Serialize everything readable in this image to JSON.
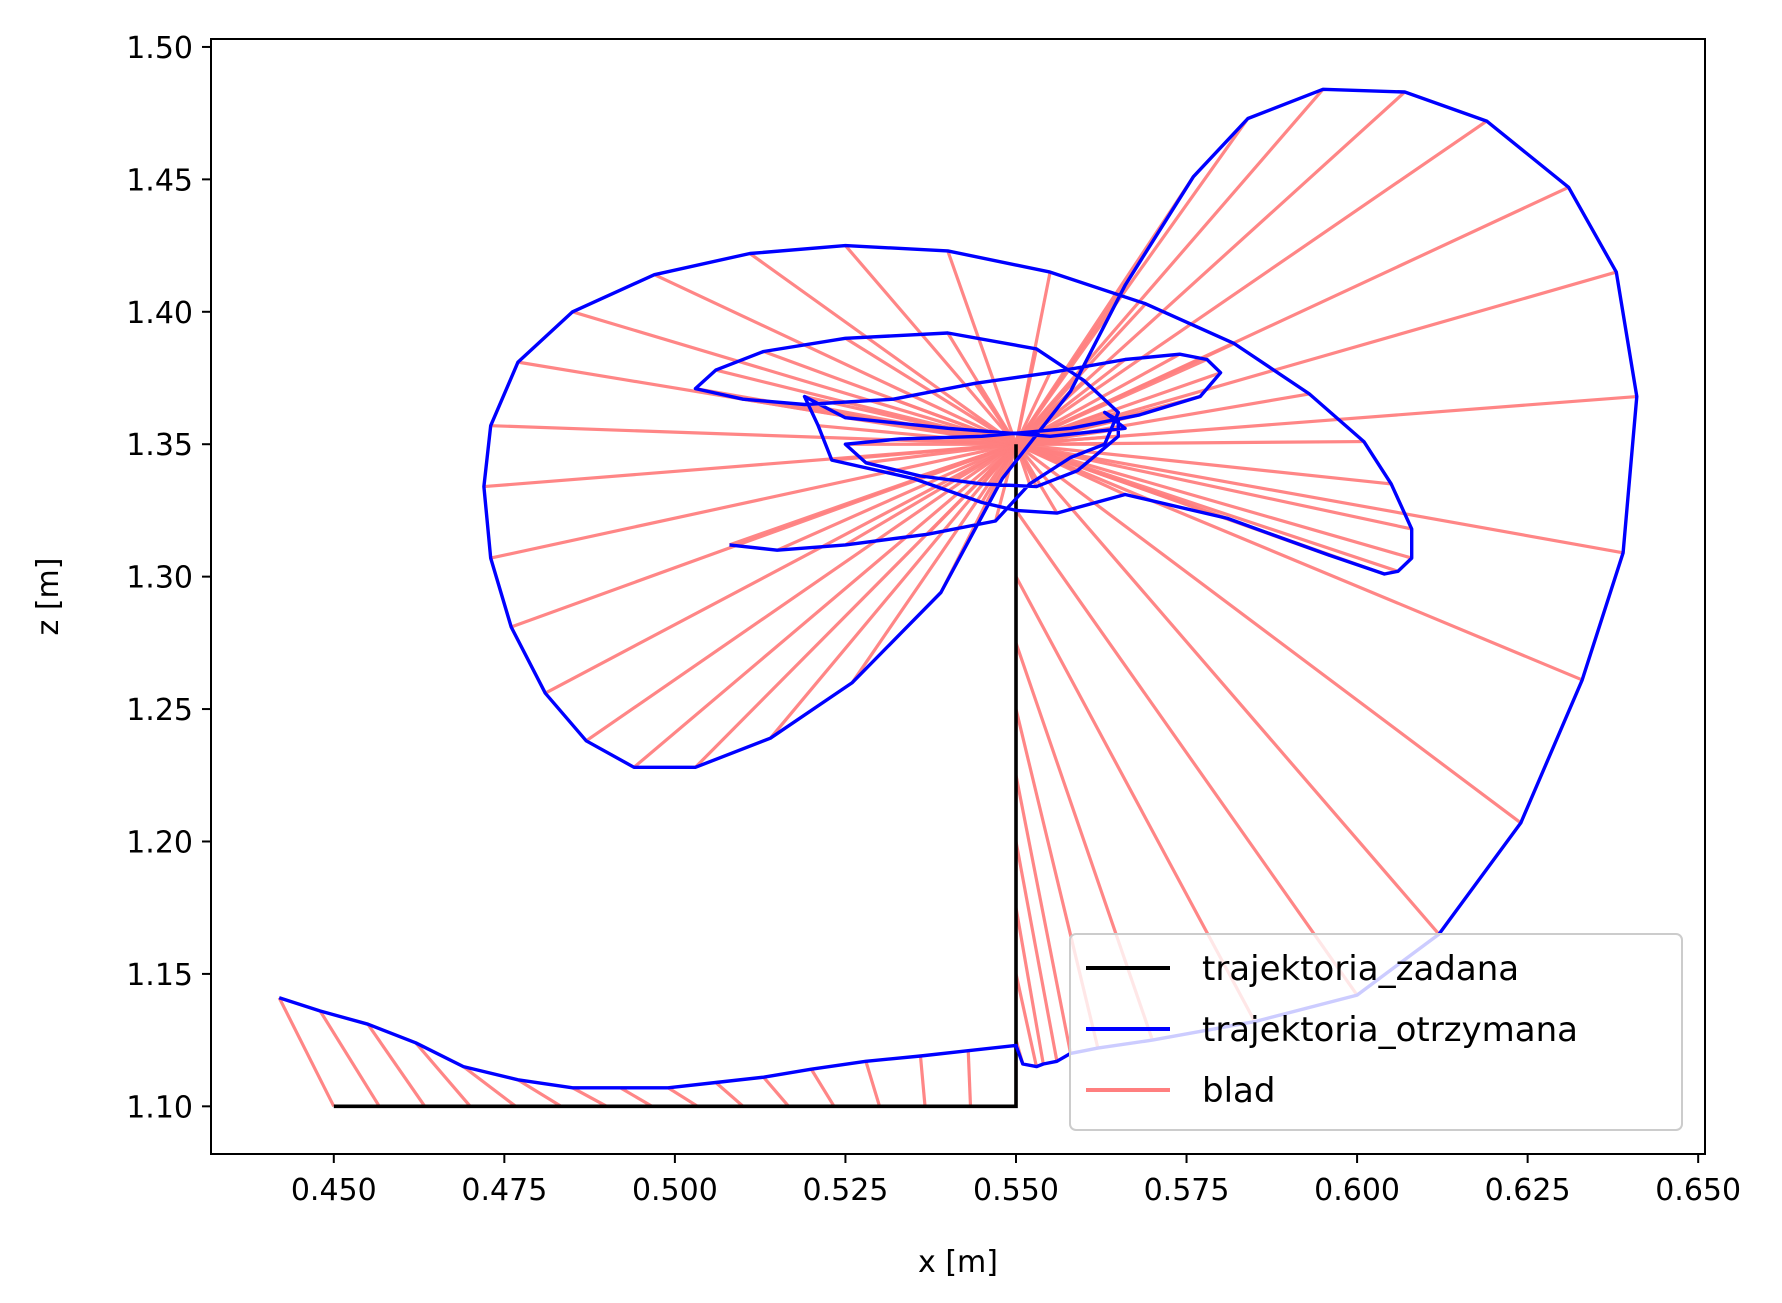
{
  "chart_data": {
    "type": "line",
    "xlabel": "x [m]",
    "ylabel": "z [m]",
    "xlim": [
      0.432,
      0.651
    ],
    "ylim": [
      1.082,
      1.503
    ],
    "x_ticks": [
      "0.450",
      "0.475",
      "0.500",
      "0.525",
      "0.550",
      "0.575",
      "0.600",
      "0.625",
      "0.650"
    ],
    "y_ticks": [
      "1.10",
      "1.15",
      "1.20",
      "1.25",
      "1.30",
      "1.35",
      "1.40",
      "1.45",
      "1.50"
    ],
    "grid": false,
    "legend_position": "lower-right",
    "series": [
      {
        "name": "trajektoria_zadana",
        "color": "#000000",
        "points": [
          [
            0.45,
            1.1
          ],
          [
            0.55,
            1.1
          ],
          [
            0.55,
            1.35
          ],
          [
            0.55,
            1.1
          ]
        ]
      },
      {
        "name": "trajektoria_otrzymana",
        "color": "#0000ff",
        "points": [
          [
            0.442,
            1.141
          ],
          [
            0.448,
            1.136
          ],
          [
            0.455,
            1.131
          ],
          [
            0.462,
            1.124
          ],
          [
            0.469,
            1.115
          ],
          [
            0.477,
            1.11
          ],
          [
            0.485,
            1.107
          ],
          [
            0.492,
            1.107
          ],
          [
            0.499,
            1.107
          ],
          [
            0.506,
            1.109
          ],
          [
            0.513,
            1.111
          ],
          [
            0.52,
            1.114
          ],
          [
            0.528,
            1.117
          ],
          [
            0.536,
            1.119
          ],
          [
            0.543,
            1.121
          ],
          [
            0.55,
            1.123
          ],
          [
            0.551,
            1.116
          ],
          [
            0.553,
            1.115
          ],
          [
            0.554,
            1.116
          ],
          [
            0.556,
            1.117
          ],
          [
            0.558,
            1.12
          ],
          [
            0.562,
            1.122
          ],
          [
            0.57,
            1.125
          ],
          [
            0.585,
            1.132
          ],
          [
            0.6,
            1.142
          ],
          [
            0.612,
            1.165
          ],
          [
            0.624,
            1.207
          ],
          [
            0.633,
            1.261
          ],
          [
            0.639,
            1.309
          ],
          [
            0.641,
            1.368
          ],
          [
            0.638,
            1.415
          ],
          [
            0.631,
            1.447
          ],
          [
            0.619,
            1.472
          ],
          [
            0.607,
            1.483
          ],
          [
            0.595,
            1.484
          ],
          [
            0.584,
            1.473
          ],
          [
            0.576,
            1.451
          ],
          [
            0.566,
            1.41
          ],
          [
            0.558,
            1.37
          ],
          [
            0.548,
            1.337
          ],
          [
            0.539,
            1.294
          ],
          [
            0.526,
            1.26
          ],
          [
            0.514,
            1.239
          ],
          [
            0.503,
            1.228
          ],
          [
            0.494,
            1.228
          ],
          [
            0.487,
            1.238
          ],
          [
            0.481,
            1.256
          ],
          [
            0.476,
            1.281
          ],
          [
            0.473,
            1.307
          ],
          [
            0.472,
            1.334
          ],
          [
            0.473,
            1.357
          ],
          [
            0.477,
            1.381
          ],
          [
            0.485,
            1.4
          ],
          [
            0.497,
            1.414
          ],
          [
            0.511,
            1.422
          ],
          [
            0.525,
            1.425
          ],
          [
            0.54,
            1.423
          ],
          [
            0.555,
            1.415
          ],
          [
            0.569,
            1.403
          ],
          [
            0.582,
            1.388
          ],
          [
            0.593,
            1.369
          ],
          [
            0.601,
            1.351
          ],
          [
            0.605,
            1.335
          ],
          [
            0.608,
            1.318
          ],
          [
            0.608,
            1.307
          ],
          [
            0.606,
            1.302
          ],
          [
            0.604,
            1.301
          ],
          [
            0.596,
            1.308
          ],
          [
            0.581,
            1.322
          ],
          [
            0.566,
            1.331
          ],
          [
            0.556,
            1.324
          ],
          [
            0.55,
            1.325
          ],
          [
            0.545,
            1.328
          ],
          [
            0.535,
            1.337
          ],
          [
            0.523,
            1.344
          ],
          [
            0.521,
            1.357
          ],
          [
            0.519,
            1.368
          ],
          [
            0.525,
            1.36
          ],
          [
            0.54,
            1.356
          ],
          [
            0.555,
            1.353
          ],
          [
            0.566,
            1.356
          ],
          [
            0.563,
            1.362
          ],
          [
            0.565,
            1.359
          ],
          [
            0.565,
            1.353
          ],
          [
            0.559,
            1.34
          ],
          [
            0.553,
            1.334
          ],
          [
            0.545,
            1.335
          ],
          [
            0.536,
            1.338
          ],
          [
            0.528,
            1.343
          ],
          [
            0.525,
            1.35
          ],
          [
            0.533,
            1.352
          ],
          [
            0.545,
            1.353
          ],
          [
            0.558,
            1.356
          ],
          [
            0.568,
            1.361
          ],
          [
            0.577,
            1.368
          ],
          [
            0.58,
            1.377
          ],
          [
            0.578,
            1.382
          ],
          [
            0.574,
            1.384
          ],
          [
            0.566,
            1.382
          ],
          [
            0.555,
            1.377
          ],
          [
            0.544,
            1.373
          ],
          [
            0.532,
            1.367
          ],
          [
            0.519,
            1.365
          ],
          [
            0.51,
            1.367
          ],
          [
            0.503,
            1.371
          ],
          [
            0.506,
            1.378
          ],
          [
            0.513,
            1.385
          ],
          [
            0.525,
            1.39
          ],
          [
            0.54,
            1.392
          ],
          [
            0.553,
            1.386
          ],
          [
            0.56,
            1.374
          ],
          [
            0.565,
            1.362
          ],
          [
            0.563,
            1.35
          ],
          [
            0.558,
            1.345
          ],
          [
            0.552,
            1.335
          ],
          [
            0.547,
            1.321
          ],
          [
            0.537,
            1.316
          ],
          [
            0.525,
            1.312
          ],
          [
            0.515,
            1.31
          ],
          [
            0.508,
            1.312
          ]
        ]
      },
      {
        "name": "blad",
        "color": "#ff7f7f"
      }
    ]
  }
}
